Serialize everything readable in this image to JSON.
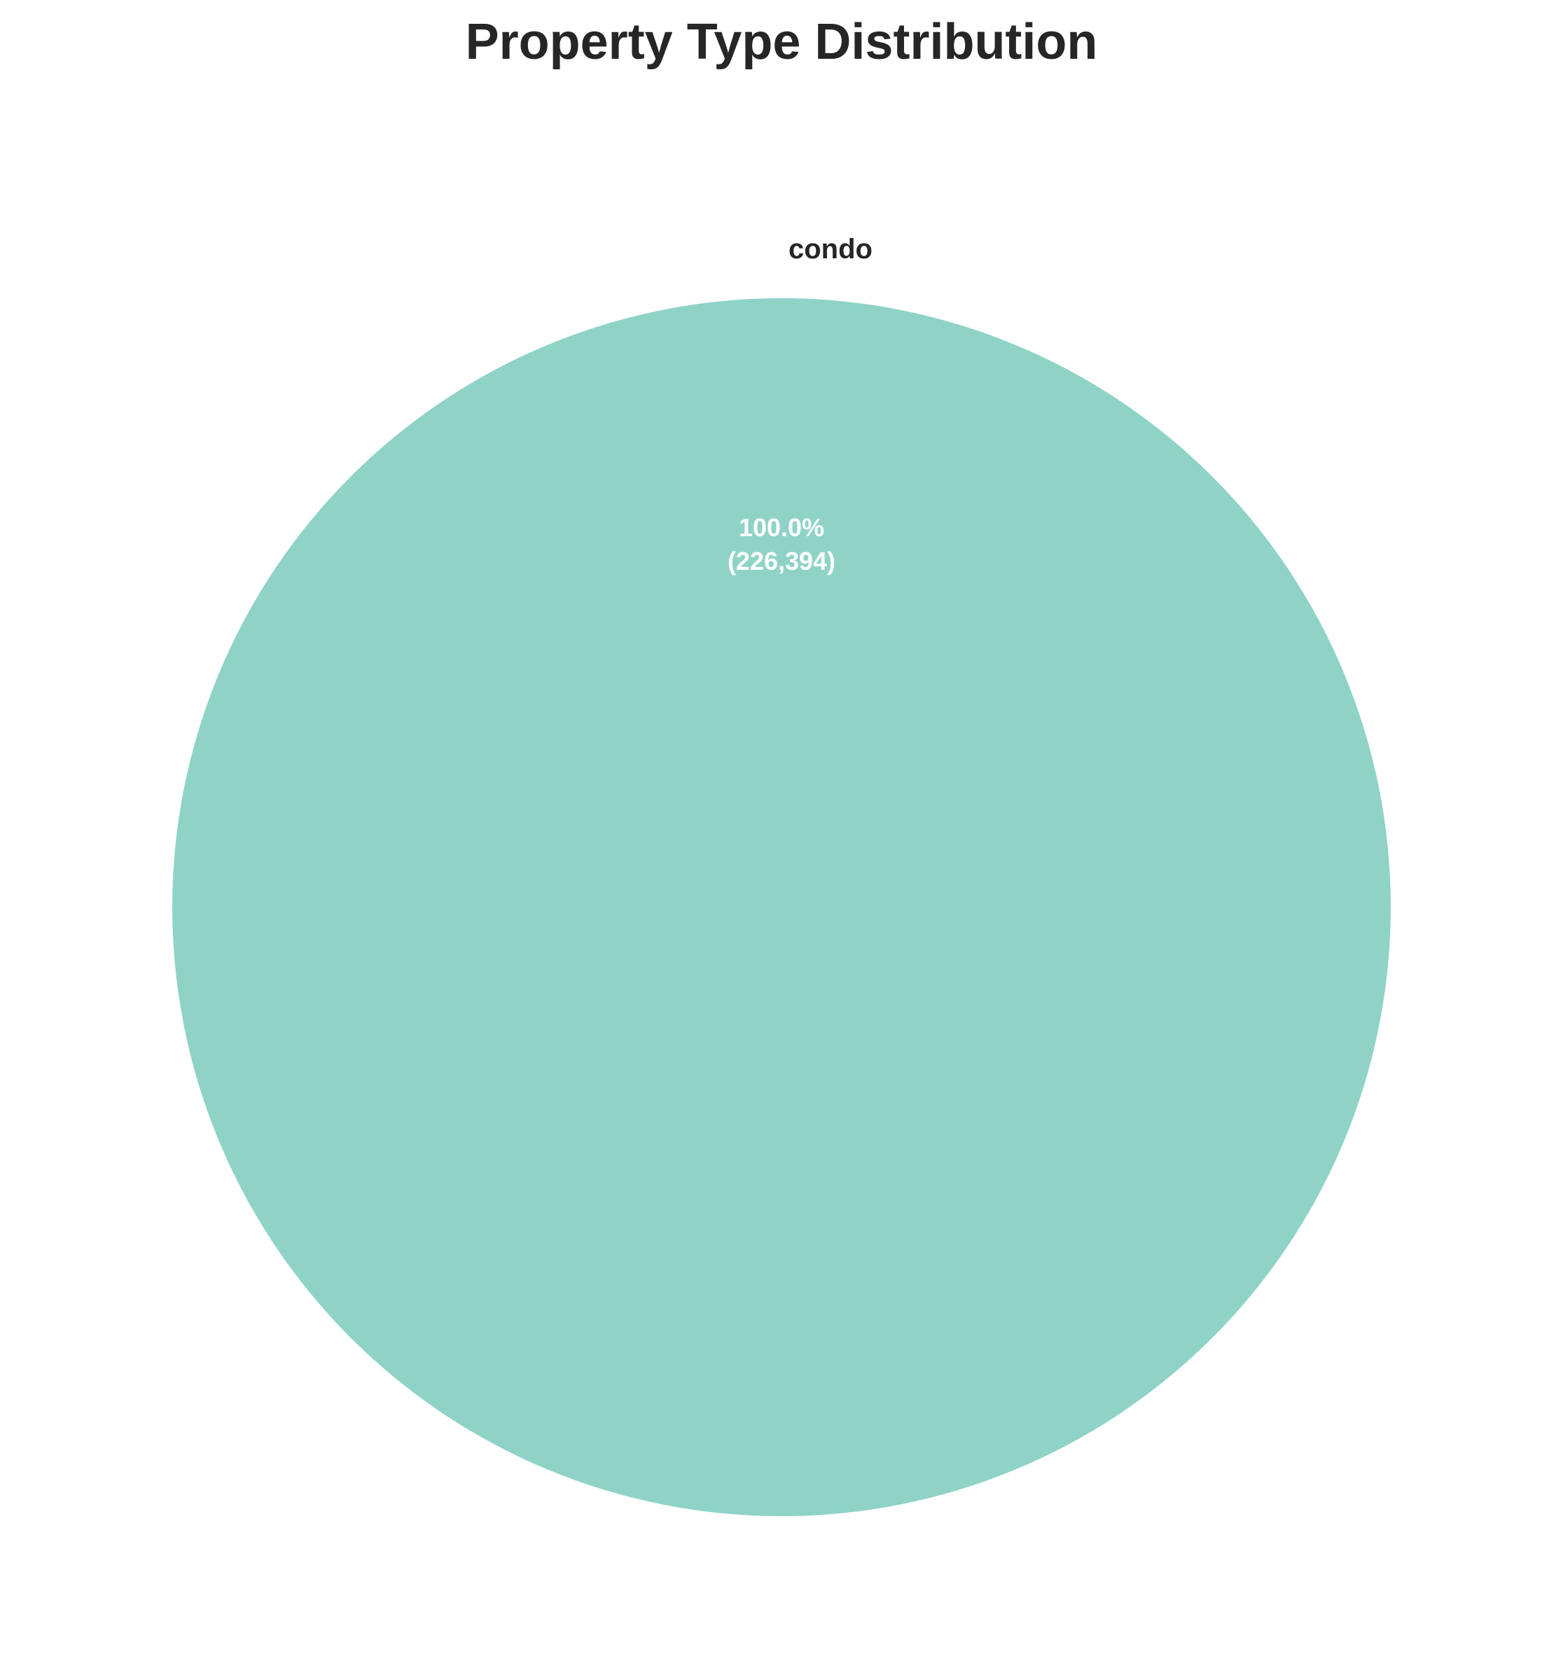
{
  "chart_data": {
    "type": "pie",
    "title": "Property Type Distribution",
    "slices": [
      {
        "label": "condo",
        "value": 226394,
        "percent": 100.0,
        "percent_text": "100.0%",
        "count_text": "(226,394)",
        "color": "#8fd3c7"
      }
    ],
    "legend": "none"
  }
}
